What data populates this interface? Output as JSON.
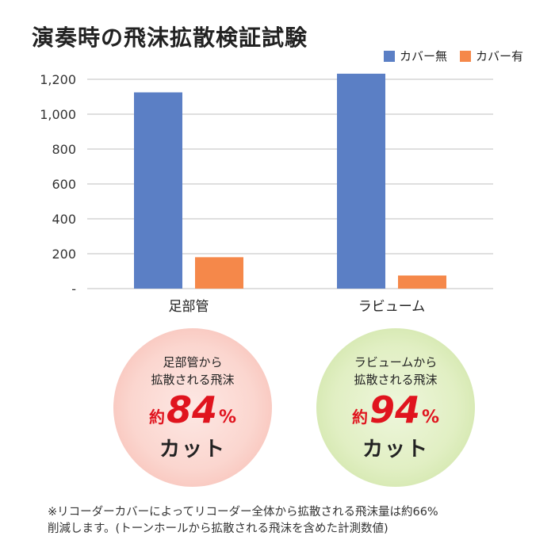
{
  "colors": {
    "no_cover": "#5b7fc5",
    "with_cover": "#f5884a",
    "highlight": "#e0141e"
  },
  "chart_data": {
    "type": "bar",
    "title": "演奏時の飛沫拡散検証試験",
    "categories": [
      "足部管",
      "ラビューム"
    ],
    "series": [
      {
        "name": "カバー無",
        "values": [
          1125,
          1232
        ]
      },
      {
        "name": "カバー有",
        "values": [
          180,
          75
        ]
      }
    ],
    "ylim": [
      0,
      1200
    ],
    "yticks": [
      {
        "value": 0,
        "label": "-"
      },
      {
        "value": 200,
        "label": "200"
      },
      {
        "value": 400,
        "label": "400"
      },
      {
        "value": 600,
        "label": "600"
      },
      {
        "value": 800,
        "label": "800"
      },
      {
        "value": 1000,
        "label": "1,000"
      },
      {
        "value": 1200,
        "label": "1,200"
      }
    ],
    "grid": true,
    "legend_position": "top-right"
  },
  "callouts": [
    {
      "line1": "足部管から",
      "line2": "拡散される飛沫",
      "prefix": "約",
      "number": "84",
      "unit": "%",
      "cut": "カット"
    },
    {
      "line1": "ラビュームから",
      "line2": "拡散される飛沫",
      "prefix": "約",
      "number": "94",
      "unit": "%",
      "cut": "カット"
    }
  ],
  "footnote": {
    "line1": "※リコーダーカバーによってリコーダー全体から拡散される飛沫量は約66%",
    "line2": "削減します。(トーンホールから拡散される飛沫を含めた計測数値)"
  }
}
